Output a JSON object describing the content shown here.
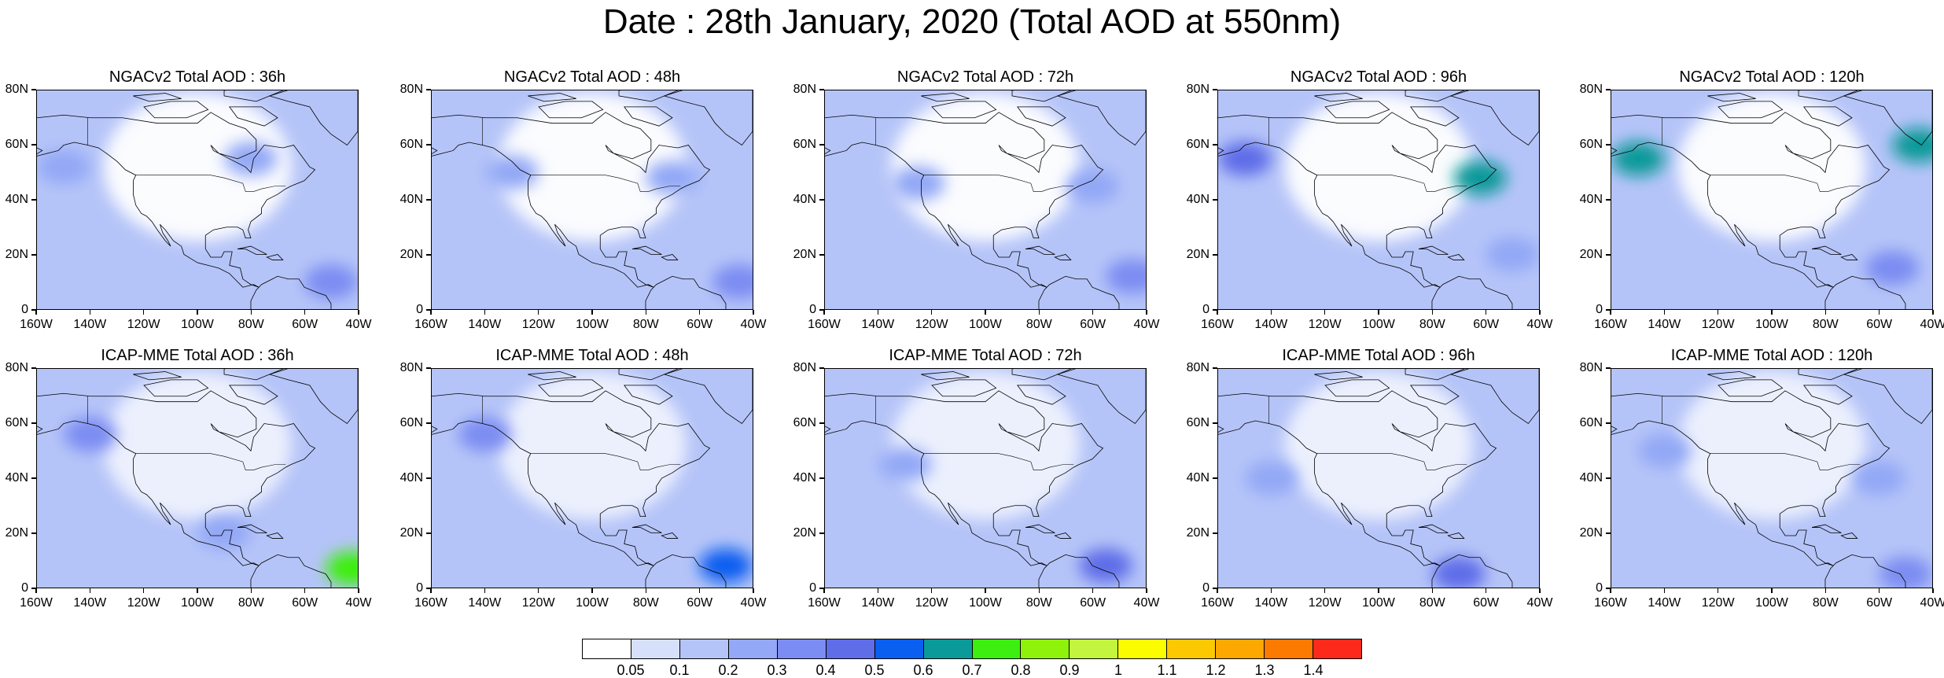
{
  "title": "Date : 28th January, 2020 (Total AOD at 550nm)",
  "panel_rows": [
    {
      "model": "NGACv2",
      "titles": [
        "NGACv2 Total AOD : 36h",
        "NGACv2 Total AOD : 48h",
        "NGACv2 Total AOD : 72h",
        "NGACv2 Total AOD : 96h",
        "NGACv2 Total AOD : 120h"
      ]
    },
    {
      "model": "ICAP-MME",
      "titles": [
        "ICAP-MME Total AOD : 36h",
        "ICAP-MME Total AOD : 48h",
        "ICAP-MME Total AOD : 72h",
        "ICAP-MME Total AOD : 96h",
        "ICAP-MME Total AOD : 120h"
      ]
    }
  ],
  "lat_labels": [
    "80N",
    "60N",
    "40N",
    "20N",
    "0"
  ],
  "lon_labels": [
    "160W",
    "140W",
    "120W",
    "100W",
    "80W",
    "60W",
    "40W"
  ],
  "map_extent": {
    "lon": [
      -160,
      -40
    ],
    "lat": [
      0,
      80
    ]
  },
  "colorbar": {
    "colors": [
      "#ffffff",
      "#d7e0fb",
      "#b5c4f8",
      "#93a8f6",
      "#7b8cf2",
      "#5f6de8",
      "#0a5ef0",
      "#0a9a9a",
      "#3cef10",
      "#8ff20a",
      "#c3f53e",
      "#fcfc00",
      "#fcc800",
      "#fca800",
      "#fc7a00",
      "#fc2a1a"
    ],
    "labels": [
      "0.05",
      "0.1",
      "0.2",
      "0.3",
      "0.4",
      "0.5",
      "0.6",
      "0.7",
      "0.8",
      "0.9",
      "1",
      "1.1",
      "1.2",
      "1.3",
      "1.4"
    ]
  },
  "chart_data": {
    "type": "heatmap",
    "title": "Date : 28th January, 2020 (Total AOD at 550nm)",
    "variable": "Total AOD at 550nm",
    "date": "28th January, 2020",
    "models": [
      "NGACv2",
      "ICAP-MME"
    ],
    "forecast_hours": [
      "36h",
      "48h",
      "72h",
      "96h",
      "120h"
    ],
    "lon_range": [
      -160,
      -40
    ],
    "lat_range": [
      0,
      80
    ],
    "levels": [
      0.05,
      0.1,
      0.2,
      0.3,
      0.4,
      0.5,
      0.6,
      0.7,
      0.8,
      0.9,
      1,
      1.1,
      1.2,
      1.3,
      1.4
    ],
    "background_aod": {
      "NGACv2": 0.1,
      "ICAP-MME": 0.1
    },
    "features": {
      "NGACv2": {
        "36h": [
          {
            "lon": -150,
            "lat": 52,
            "aod": 0.2
          },
          {
            "lon": -80,
            "lat": 55,
            "aod": 0.2
          },
          {
            "lon": -50,
            "lat": 10,
            "aod": 0.3
          }
        ],
        "48h": [
          {
            "lon": -130,
            "lat": 50,
            "aod": 0.2
          },
          {
            "lon": -70,
            "lat": 48,
            "aod": 0.2
          },
          {
            "lon": -45,
            "lat": 10,
            "aod": 0.3
          }
        ],
        "72h": [
          {
            "lon": -125,
            "lat": 46,
            "aod": 0.2
          },
          {
            "lon": -60,
            "lat": 45,
            "aod": 0.2
          },
          {
            "lon": -45,
            "lat": 12,
            "aod": 0.3
          }
        ],
        "96h": [
          {
            "lon": -150,
            "lat": 55,
            "aod": 0.4
          },
          {
            "lon": -62,
            "lat": 48,
            "aod": 0.6
          },
          {
            "lon": -50,
            "lat": 20,
            "aod": 0.2
          }
        ],
        "120h": [
          {
            "lon": -150,
            "lat": 55,
            "aod": 0.6
          },
          {
            "lon": -45,
            "lat": 60,
            "aod": 0.6
          },
          {
            "lon": -55,
            "lat": 15,
            "aod": 0.3
          }
        ]
      },
      "ICAP-MME": {
        "36h": [
          {
            "lon": -140,
            "lat": 56,
            "aod": 0.3
          },
          {
            "lon": -90,
            "lat": 20,
            "aod": 0.2
          },
          {
            "lon": -42,
            "lat": 7,
            "aod": 0.7
          }
        ],
        "48h": [
          {
            "lon": -140,
            "lat": 56,
            "aod": 0.3
          },
          {
            "lon": -50,
            "lat": 8,
            "aod": 0.5
          }
        ],
        "72h": [
          {
            "lon": -130,
            "lat": 45,
            "aod": 0.2
          },
          {
            "lon": -55,
            "lat": 8,
            "aod": 0.4
          }
        ],
        "96h": [
          {
            "lon": -140,
            "lat": 40,
            "aod": 0.2
          },
          {
            "lon": -70,
            "lat": 5,
            "aod": 0.4
          }
        ],
        "120h": [
          {
            "lon": -140,
            "lat": 50,
            "aod": 0.2
          },
          {
            "lon": -60,
            "lat": 40,
            "aod": 0.2
          },
          {
            "lon": -50,
            "lat": 5,
            "aod": 0.3
          }
        ]
      }
    }
  }
}
